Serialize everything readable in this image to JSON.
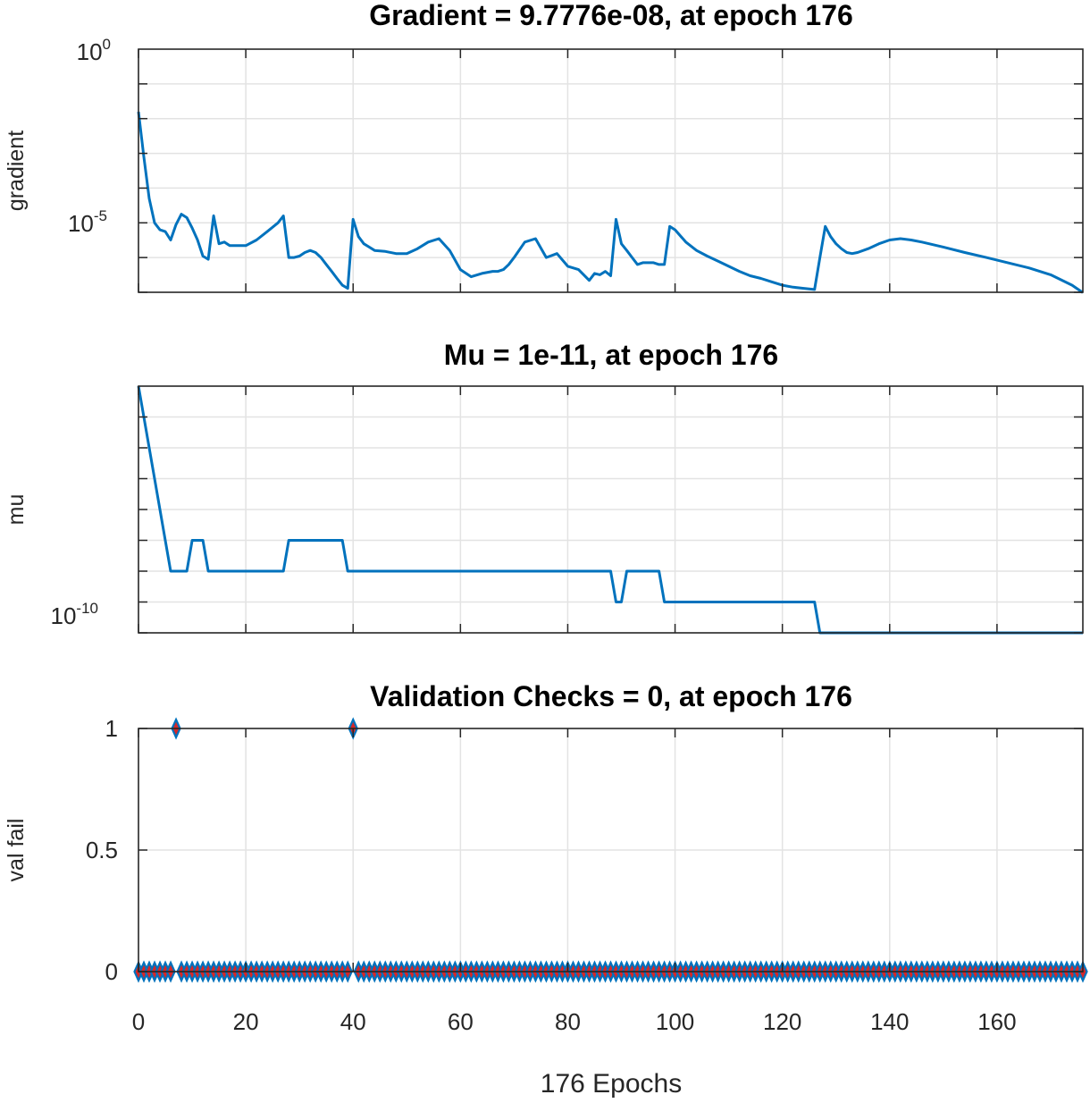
{
  "chart_data": [
    {
      "type": "line",
      "title": "Gradient = 9.7776e-08, at epoch 176",
      "xlabel": "",
      "ylabel": "gradient",
      "yscale": "log",
      "ylim": [
        1e-07,
        1
      ],
      "xlim": [
        0,
        176
      ],
      "ytick_labels": [
        {
          "base": "10",
          "exp": "0",
          "value": 1
        },
        {
          "base": "10",
          "exp": "-5",
          "value": 1e-05
        }
      ],
      "grid": true,
      "color": "#0072BD",
      "series": [
        {
          "name": "gradient",
          "x": [
            0,
            1,
            2,
            3,
            4,
            5,
            6,
            7,
            8,
            9,
            10,
            11,
            12,
            13,
            14,
            15,
            16,
            17,
            18,
            20,
            22,
            24,
            26,
            27,
            28,
            29,
            30,
            31,
            32,
            33,
            34,
            35,
            36,
            37,
            38,
            39,
            40,
            41,
            42,
            43,
            44,
            46,
            48,
            50,
            52,
            54,
            56,
            58,
            60,
            62,
            64,
            66,
            67,
            68,
            69,
            70,
            72,
            74,
            76,
            78,
            80,
            82,
            84,
            85,
            86,
            87,
            88,
            89,
            90,
            91,
            92,
            93,
            94,
            95,
            96,
            97,
            98,
            99,
            100,
            102,
            104,
            106,
            108,
            110,
            112,
            114,
            116,
            118,
            120,
            122,
            124,
            126,
            127,
            128,
            129,
            130,
            131,
            132,
            133,
            134,
            136,
            138,
            140,
            142,
            144,
            146,
            150,
            154,
            158,
            162,
            166,
            170,
            174,
            176
          ],
          "values": [
            0.0157,
            0.00079,
            5.01e-05,
            1e-05,
            6.3e-06,
            5.6e-06,
            3.2e-06,
            8.9e-06,
            1.78e-05,
            1.41e-05,
            7.1e-06,
            3.2e-06,
            1.1e-06,
            8.9e-07,
            1.6e-05,
            2.5e-06,
            2.8e-06,
            2.2e-06,
            2.2e-06,
            2.2e-06,
            3.2e-06,
            5.6e-06,
            1e-05,
            1.58e-05,
            1e-06,
            1e-06,
            1.1e-06,
            1.4e-06,
            1.6e-06,
            1.4e-06,
            1e-06,
            6.3e-07,
            4e-07,
            2.5e-07,
            1.6e-07,
            1.3e-07,
            1.26e-05,
            4e-06,
            2.5e-06,
            2e-06,
            1.6e-06,
            1.5e-06,
            1.3e-06,
            1.3e-06,
            1.8e-06,
            2.8e-06,
            3.5e-06,
            1.6e-06,
            4.5e-07,
            2.8e-07,
            3.5e-07,
            4e-07,
            4e-07,
            4.5e-07,
            6.3e-07,
            1e-06,
            2.8e-06,
            3.5e-06,
            1e-06,
            1.3e-06,
            5.6e-07,
            4.5e-07,
            2.2e-07,
            3.5e-07,
            3.2e-07,
            4e-07,
            3e-07,
            1.26e-05,
            2.5e-06,
            1.6e-06,
            1e-06,
            6.3e-07,
            7.1e-07,
            7.1e-07,
            7.1e-07,
            6.3e-07,
            6.3e-07,
            7.9e-06,
            6.3e-06,
            2.8e-06,
            1.6e-06,
            1.1e-06,
            7.9e-07,
            5.6e-07,
            4e-07,
            3e-07,
            2.5e-07,
            2e-07,
            1.6e-07,
            1.4e-07,
            1.3e-07,
            1.2e-07,
            1e-06,
            7.9e-06,
            4e-06,
            2.5e-06,
            1.8e-06,
            1.4e-06,
            1.3e-06,
            1.4e-06,
            1.8e-06,
            2.5e-06,
            3.2e-06,
            3.5e-06,
            3.2e-06,
            2.8e-06,
            2e-06,
            1.4e-06,
            1e-06,
            7.1e-07,
            5e-07,
            3.2e-07,
            1.6e-07,
            9.7776e-08
          ]
        }
      ]
    },
    {
      "type": "line",
      "title": "Mu = 1e-11, at epoch 176",
      "xlabel": "",
      "ylabel": "mu",
      "yscale": "log",
      "ylim": [
        1e-11,
        0.001
      ],
      "xlim": [
        0,
        176
      ],
      "ytick_labels": [
        {
          "base": "10",
          "exp": "-10",
          "value": 1e-10
        }
      ],
      "grid": true,
      "color": "#0072BD",
      "series": [
        {
          "name": "mu",
          "x": [
            0,
            6,
            9,
            10,
            12,
            13,
            14,
            27,
            28,
            38,
            39,
            40,
            88,
            89,
            90,
            91,
            97,
            98,
            126,
            127,
            176
          ],
          "values": [
            0.001,
            1e-09,
            1e-09,
            1e-08,
            1e-08,
            1e-09,
            1e-09,
            1e-09,
            1e-08,
            1e-08,
            1e-09,
            1e-09,
            1e-09,
            1e-10,
            1e-10,
            1e-09,
            1e-09,
            1e-10,
            1e-10,
            1e-11,
            1e-11
          ]
        }
      ]
    },
    {
      "type": "scatter",
      "title": "Validation Checks = 0, at epoch 176",
      "xlabel": "176 Epochs",
      "ylabel": "val fail",
      "yscale": "linear",
      "ylim": [
        0,
        1
      ],
      "xlim": [
        0,
        176
      ],
      "yticks": [
        0,
        0.5,
        1
      ],
      "ytick_text": [
        "0",
        "0.5",
        "1"
      ],
      "xticks": [
        0,
        20,
        40,
        60,
        80,
        100,
        120,
        140,
        160
      ],
      "xtick_text": [
        "0",
        "20",
        "40",
        "60",
        "80",
        "100",
        "120",
        "140",
        "160"
      ],
      "grid": true,
      "marker": "diamond",
      "marker_edge": "#0072BD",
      "marker_face": "#D62728",
      "epochs": 176,
      "fail_epochs": [
        7,
        40
      ]
    }
  ]
}
